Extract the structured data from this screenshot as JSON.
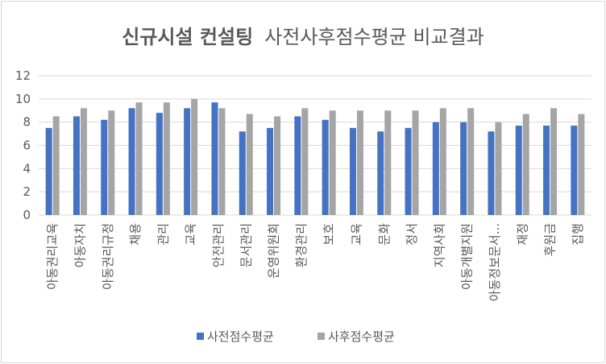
{
  "chart_data": {
    "type": "bar",
    "title_bold": "신규시설 컨설팅",
    "title_rest": "사전사후점수평균 비교결과",
    "categories": [
      "아동권리교육",
      "아동자치",
      "아동권리규정",
      "채용",
      "관리",
      "교육",
      "안전관리",
      "문서관리",
      "운영위원회",
      "환경관리",
      "보호",
      "교육",
      "문화",
      "정서",
      "지역사회",
      "아동개별지원",
      "아동정보문서...",
      "재정",
      "후원금",
      "집행"
    ],
    "series": [
      {
        "name": "사전점수평균",
        "color": "#4472c4",
        "values": [
          7.5,
          8.5,
          8.2,
          9.2,
          8.8,
          9.2,
          9.7,
          7.2,
          7.5,
          8.5,
          8.2,
          7.5,
          7.2,
          7.5,
          8.0,
          8.0,
          7.2,
          7.7,
          7.7,
          7.7
        ]
      },
      {
        "name": "사후점수평균",
        "color": "#a5a5a5",
        "values": [
          8.5,
          9.2,
          9.0,
          9.7,
          9.7,
          10.0,
          9.2,
          8.7,
          8.5,
          9.2,
          9.0,
          9.0,
          9.0,
          9.0,
          9.2,
          9.2,
          8.0,
          8.7,
          9.2,
          8.7
        ]
      }
    ],
    "yticks": [
      "0",
      "2",
      "4",
      "6",
      "8",
      "10",
      "12"
    ],
    "ylim": [
      0,
      12
    ],
    "grid": true,
    "legend": "bottom"
  }
}
